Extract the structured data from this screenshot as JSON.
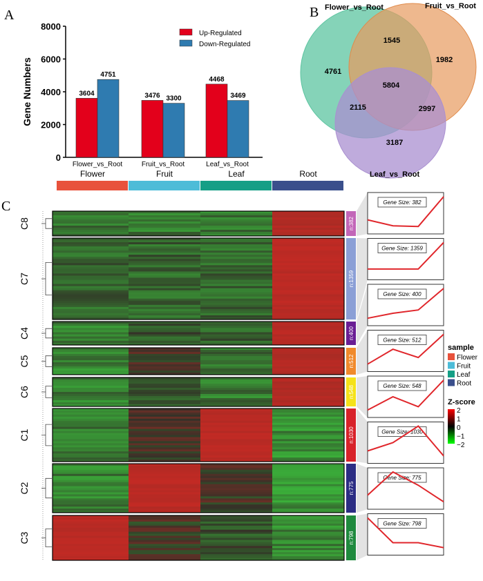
{
  "panel_labels": {
    "a": "A",
    "b": "B",
    "c": "C"
  },
  "chart_data": [
    {
      "type": "bar",
      "title": "",
      "ylabel": "Gene Numbers",
      "xlabel": "",
      "ylim": [
        0,
        8000
      ],
      "yticks": [
        "0",
        "2000",
        "4000",
        "6000",
        "8000"
      ],
      "categories": [
        "Flower_vs_Root",
        "Fruit_vs_Root",
        "Leaf_vs_Root"
      ],
      "series": [
        {
          "name": "Up-Regulated",
          "color": "#e3001b",
          "values": [
            3604,
            3476,
            4468
          ]
        },
        {
          "name": "Down-Regulated",
          "color": "#2f7bb0",
          "values": [
            4751,
            3300,
            3469
          ]
        }
      ],
      "legend": "top-right"
    },
    {
      "type": "venn",
      "sets": [
        {
          "name": "Flower_vs_Root",
          "color": "#5cc4a0"
        },
        {
          "name": "Fruit_vs_Root",
          "color": "#e79a5e"
        },
        {
          "name": "Leaf_vs_Root",
          "color": "#a98fd0"
        }
      ],
      "regions": {
        "flower_only": "4761",
        "fruit_only": "1982",
        "leaf_only": "3187",
        "flower_fruit": "1545",
        "flower_leaf": "2115",
        "fruit_leaf": "2997",
        "all": "5804"
      }
    },
    {
      "type": "heatmap",
      "columns": [
        "Flower",
        "Fruit",
        "Leaf",
        "Root"
      ],
      "column_colors": [
        "#e8523c",
        "#4dbcd8",
        "#169f86",
        "#3a4f8c"
      ],
      "clusters": [
        {
          "name": "C8",
          "n": "n:382",
          "color": "#c266b8",
          "size_label": "Gene Size: 382",
          "zscores": [
            -0.8,
            -0.9,
            -0.95,
            1.5
          ],
          "trend": [
            0.3,
            0.12,
            0.1,
            1.0
          ]
        },
        {
          "name": "C7",
          "n": "n:1359",
          "color": "#8b9fd6",
          "size_label": "Gene Size: 1359",
          "zscores": [
            -0.6,
            -0.6,
            -0.6,
            1.6
          ],
          "trend": [
            0.2,
            0.2,
            0.2,
            1.0
          ]
        },
        {
          "name": "C4",
          "n": "n:400",
          "color": "#6a1e94",
          "size_label": "Gene Size: 400",
          "zscores": [
            -1.0,
            -0.4,
            -0.5,
            1.6
          ],
          "trend": [
            0.1,
            0.25,
            0.35,
            1.0
          ]
        },
        {
          "name": "C5",
          "n": "n:512",
          "color": "#f08a2c",
          "size_label": "Gene Size: 512",
          "zscores": [
            -1.1,
            0.1,
            -0.8,
            1.5
          ],
          "trend": [
            0.1,
            0.55,
            0.3,
            1.0
          ]
        },
        {
          "name": "C6",
          "n": "n:548",
          "color": "#f5e21a",
          "size_label": "Gene Size: 548",
          "zscores": [
            -1.0,
            -0.2,
            -0.9,
            1.5
          ],
          "trend": [
            0.1,
            0.5,
            0.2,
            1.0
          ]
        },
        {
          "name": "C1",
          "n": "n:1030",
          "color": "#d8222a",
          "size_label": "Gene Size: 1030",
          "zscores": [
            -0.9,
            0.3,
            1.6,
            -1.2
          ],
          "trend": [
            0.25,
            0.5,
            1.0,
            0.1
          ]
        },
        {
          "name": "C2",
          "n": "n:775",
          "color": "#2c2d84",
          "size_label": "Gene Size: 775",
          "zscores": [
            -1.0,
            1.6,
            0.1,
            -1.3
          ],
          "trend": [
            0.3,
            1.0,
            0.6,
            0.1
          ]
        },
        {
          "name": "C3",
          "n": "n:798",
          "color": "#1f8a3e",
          "size_label": "Gene Size: 798",
          "zscores": [
            1.6,
            0.1,
            -0.3,
            -1.1
          ],
          "trend": [
            1.0,
            0.25,
            0.25,
            0.1
          ]
        }
      ],
      "legend_sample_title": "sample",
      "legend_z_title": "Z-score",
      "z_ticks": [
        "2",
        "1",
        "0",
        "−1",
        "−2"
      ]
    }
  ]
}
